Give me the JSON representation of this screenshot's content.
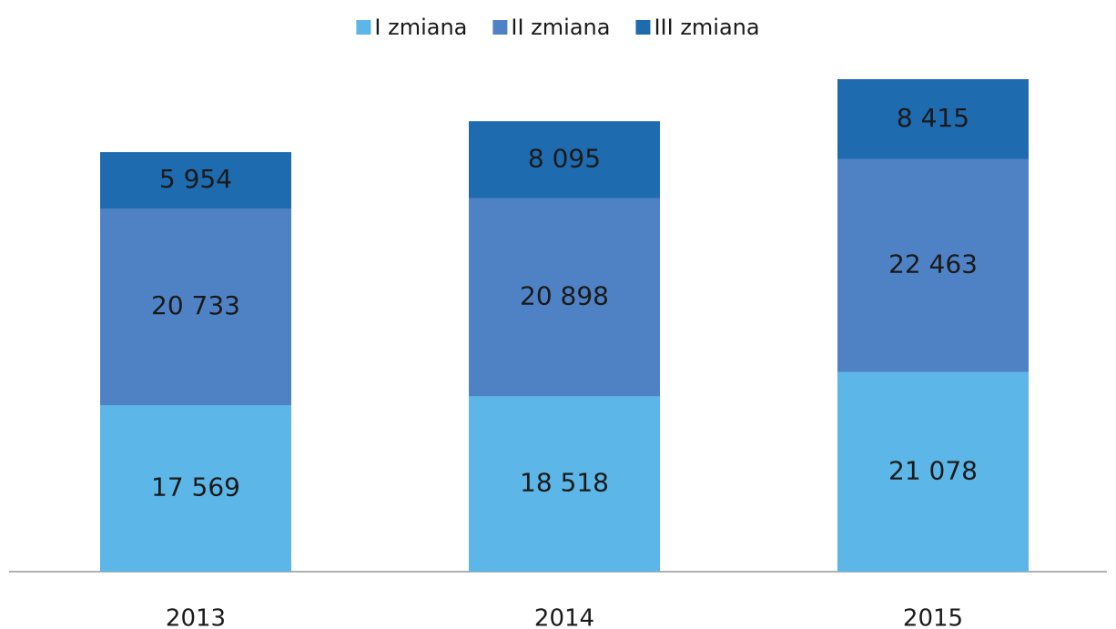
{
  "chart_data": {
    "type": "stacked_bar",
    "categories": [
      "2013",
      "2014",
      "2015"
    ],
    "series": [
      {
        "name": "I zmiana",
        "color": "#5db6e8",
        "values": [
          17569,
          18518,
          21078
        ],
        "value_labels": [
          "17 569",
          "18 518",
          "21 078"
        ]
      },
      {
        "name": "II zmiana",
        "color": "#4f82c4",
        "values": [
          20733,
          20898,
          22463
        ],
        "value_labels": [
          "20 733",
          "20 898",
          "22 463"
        ]
      },
      {
        "name": "III zmiana",
        "color": "#1f6bb0",
        "values": [
          5954,
          8095,
          8415
        ],
        "value_labels": [
          "5 954",
          "8 095",
          "8 415"
        ]
      }
    ],
    "legend": "top"
  }
}
